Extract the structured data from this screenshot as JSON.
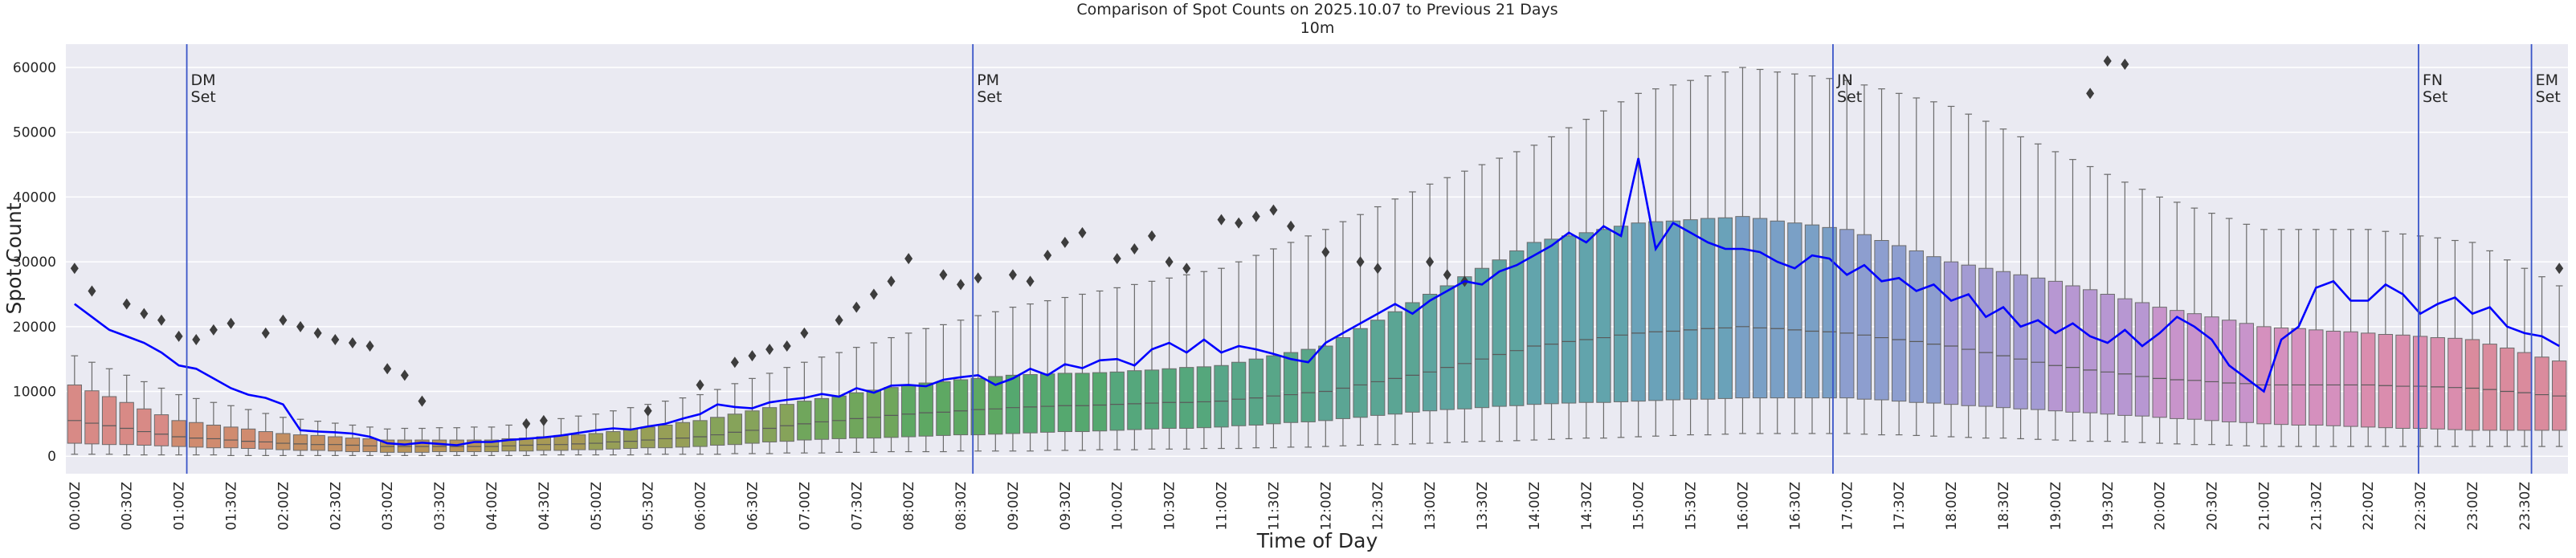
{
  "chart_data": {
    "type": "box",
    "title": "Comparison of Spot Counts on 2025.10.07 to Previous 21 Days",
    "subtitle": "10m",
    "xlabel": "Time of Day",
    "ylabel": "Spot Count",
    "ylim": [
      -2700,
      63600
    ],
    "yticks": [
      0,
      10000,
      20000,
      30000,
      40000,
      50000,
      60000
    ],
    "xlim": [
      -0.5,
      143.5
    ],
    "grid": true,
    "categories": [
      "00:00Z",
      null,
      null,
      "00:30Z",
      null,
      null,
      "01:00Z",
      null,
      null,
      "01:30Z",
      null,
      null,
      "02:00Z",
      null,
      null,
      "02:30Z",
      null,
      null,
      "03:00Z",
      null,
      null,
      "03:30Z",
      null,
      null,
      "04:00Z",
      null,
      null,
      "04:30Z",
      null,
      null,
      "05:00Z",
      null,
      null,
      "05:30Z",
      null,
      null,
      "06:00Z",
      null,
      null,
      "06:30Z",
      null,
      null,
      "07:00Z",
      null,
      null,
      "07:30Z",
      null,
      null,
      "08:00Z",
      null,
      null,
      "08:30Z",
      null,
      null,
      "09:00Z",
      null,
      null,
      "09:30Z",
      null,
      null,
      "10:00Z",
      null,
      null,
      "10:30Z",
      null,
      null,
      "11:00Z",
      null,
      null,
      "11:30Z",
      null,
      null,
      "12:00Z",
      null,
      null,
      "12:30Z",
      null,
      null,
      "13:00Z",
      null,
      null,
      "13:30Z",
      null,
      null,
      "14:00Z",
      null,
      null,
      "14:30Z",
      null,
      null,
      "15:00Z",
      null,
      null,
      "15:30Z",
      null,
      null,
      "16:00Z",
      null,
      null,
      "16:30Z",
      null,
      null,
      "17:00Z",
      null,
      null,
      "17:30Z",
      null,
      null,
      "18:00Z",
      null,
      null,
      "18:30Z",
      null,
      null,
      "19:00Z",
      null,
      null,
      "19:30Z",
      null,
      null,
      "20:00Z",
      null,
      null,
      "20:30Z",
      null,
      null,
      "21:00Z",
      null,
      null,
      "21:30Z",
      null,
      null,
      "22:00Z",
      null,
      null,
      "22:30Z",
      null,
      null,
      "23:00Z",
      null,
      null,
      "23:30Z",
      null,
      null
    ],
    "palette": [
      "#d88a86",
      "#d08b6f",
      "#c48f62",
      "#b8945a",
      "#a89a56",
      "#979f57",
      "#86a35a",
      "#70a65c",
      "#5ea863",
      "#55a86f",
      "#55a77c",
      "#58a688",
      "#5ba594",
      "#5ea5a0",
      "#62a4ac",
      "#6aa2b9",
      "#7aa0c6",
      "#8d9ecf",
      "#a39bd3",
      "#b797d2",
      "#c894cb",
      "#d590be",
      "#da8dae",
      "#da8b9d"
    ],
    "whislo": [
      300,
      300,
      300,
      200,
      200,
      200,
      200,
      200,
      200,
      100,
      100,
      100,
      100,
      100,
      100,
      100,
      100,
      100,
      100,
      100,
      100,
      100,
      100,
      100,
      100,
      100,
      100,
      200,
      200,
      200,
      200,
      200,
      200,
      300,
      300,
      300,
      300,
      300,
      400,
      400,
      400,
      500,
      500,
      500,
      600,
      600,
      600,
      700,
      700,
      700,
      700,
      800,
      800,
      800,
      800,
      800,
      900,
      900,
      900,
      1000,
      1000,
      1000,
      1100,
      1100,
      1100,
      1200,
      1200,
      1200,
      1300,
      1300,
      1400,
      1400,
      1500,
      1600,
      1700,
      1800,
      1800,
      1900,
      2000,
      2100,
      2200,
      2300,
      2300,
      2400,
      2500,
      2600,
      2700,
      2800,
      2800,
      2900,
      3000,
      3100,
      3200,
      3300,
      3300,
      3400,
      3500,
      3500,
      3500,
      3500,
      3500,
      3500,
      3500,
      3400,
      3300,
      3300,
      3200,
      3100,
      3000,
      2900,
      2800,
      2800,
      2700,
      2600,
      2500,
      2400,
      2300,
      2300,
      2200,
      2100,
      2000,
      1900,
      1800,
      1800,
      1700,
      1600,
      1500,
      1500,
      1500,
      1500,
      1500,
      1500,
      1500,
      1500,
      1500,
      1500,
      1500,
      1500,
      1500,
      1500,
      1500,
      1500,
      1500,
      1500
    ],
    "q1": [
      2000,
      1900,
      1800,
      1800,
      1700,
      1600,
      1500,
      1400,
      1300,
      1300,
      1200,
      1100,
      1000,
      900,
      900,
      800,
      700,
      700,
      600,
      600,
      600,
      700,
      700,
      700,
      700,
      800,
      800,
      900,
      900,
      1000,
      1000,
      1100,
      1200,
      1300,
      1300,
      1400,
      1500,
      1700,
      1800,
      2000,
      2200,
      2300,
      2500,
      2600,
      2700,
      2800,
      2800,
      2900,
      3000,
      3100,
      3200,
      3300,
      3300,
      3400,
      3500,
      3600,
      3700,
      3800,
      3800,
      3900,
      4000,
      4100,
      4200,
      4300,
      4300,
      4400,
      4500,
      4700,
      4800,
      5000,
      5200,
      5300,
      5500,
      5800,
      6000,
      6300,
      6500,
      6800,
      7000,
      7200,
      7300,
      7500,
      7700,
      7800,
      8000,
      8100,
      8200,
      8300,
      8300,
      8400,
      8500,
      8600,
      8700,
      8800,
      8800,
      8900,
      9000,
      9000,
      9000,
      9000,
      9000,
      9000,
      9000,
      8800,
      8700,
      8500,
      8300,
      8200,
      8000,
      7800,
      7700,
      7500,
      7300,
      7200,
      7000,
      6800,
      6700,
      6500,
      6300,
      6200,
      6000,
      5800,
      5700,
      5500,
      5300,
      5200,
      5000,
      4900,
      4800,
      4800,
      4700,
      4600,
      4500,
      4400,
      4300,
      4300,
      4200,
      4100,
      4000,
      4000,
      4000,
      4000,
      4000,
      4000
    ],
    "med": [
      5500,
      5100,
      4700,
      4300,
      3800,
      3400,
      3000,
      2800,
      2700,
      2500,
      2300,
      2200,
      2000,
      1900,
      1800,
      1800,
      1700,
      1600,
      1500,
      1500,
      1500,
      1500,
      1500,
      1500,
      1500,
      1600,
      1700,
      1800,
      1800,
      1900,
      2000,
      2200,
      2300,
      2500,
      2700,
      2800,
      3000,
      3300,
      3700,
      4000,
      4300,
      4700,
      5000,
      5300,
      5500,
      5800,
      6000,
      6300,
      6500,
      6700,
      6800,
      7000,
      7200,
      7300,
      7500,
      7600,
      7700,
      7800,
      7800,
      7900,
      8000,
      8100,
      8200,
      8300,
      8300,
      8400,
      8500,
      8800,
      9000,
      9300,
      9500,
      9800,
      10000,
      10500,
      11000,
      11500,
      12000,
      12500,
      13000,
      13700,
      14300,
      15000,
      15700,
      16300,
      17000,
      17300,
      17700,
      18000,
      18300,
      18700,
      19000,
      19200,
      19300,
      19500,
      19700,
      19800,
      20000,
      19800,
      19700,
      19500,
      19300,
      19200,
      19000,
      18700,
      18300,
      18000,
      17700,
      17300,
      17000,
      16500,
      16000,
      15500,
      15000,
      14500,
      14000,
      13700,
      13300,
      13000,
      12700,
      12300,
      12000,
      11800,
      11700,
      11500,
      11300,
      11200,
      11000,
      11000,
      11000,
      11000,
      11000,
      11000,
      11000,
      10900,
      10800,
      10800,
      10700,
      10600,
      10500,
      10300,
      10000,
      9800,
      9500,
      9300
    ],
    "q3": [
      11000,
      10100,
      9200,
      8300,
      7300,
      6400,
      5500,
      5200,
      4800,
      4500,
      4200,
      3800,
      3500,
      3300,
      3200,
      3000,
      2800,
      2700,
      2500,
      2500,
      2500,
      2500,
      2500,
      2500,
      2500,
      2700,
      2800,
      3000,
      3200,
      3300,
      3500,
      3800,
      4200,
      4500,
      4800,
      5200,
      5500,
      6000,
      6500,
      7000,
      7500,
      8000,
      8500,
      8900,
      9300,
      9800,
      10200,
      10600,
      11000,
      11300,
      11500,
      11800,
      12000,
      12300,
      12500,
      12600,
      12700,
      12800,
      12800,
      12900,
      13000,
      13200,
      13300,
      13500,
      13700,
      13800,
      14000,
      14500,
      15000,
      15500,
      16000,
      16500,
      17000,
      18300,
      19700,
      21000,
      22300,
      23700,
      25000,
      26300,
      27700,
      29000,
      30300,
      31700,
      33000,
      33500,
      34000,
      34500,
      35000,
      35500,
      36000,
      36200,
      36300,
      36500,
      36700,
      36800,
      37000,
      36700,
      36300,
      36000,
      35700,
      35300,
      35000,
      34200,
      33300,
      32500,
      31700,
      30800,
      30000,
      29500,
      29000,
      28500,
      28000,
      27500,
      27000,
      26300,
      25700,
      25000,
      24300,
      23700,
      23000,
      22500,
      22000,
      21500,
      21000,
      20500,
      20000,
      19800,
      19700,
      19500,
      19300,
      19200,
      19000,
      18800,
      18700,
      18500,
      18300,
      18200,
      18000,
      17300,
      16700,
      16000,
      15300,
      14700
    ],
    "whishi": [
      15500,
      14500,
      13500,
      12500,
      11500,
      10500,
      9500,
      8900,
      8300,
      7800,
      7200,
      6600,
      6000,
      5700,
      5400,
      5100,
      4800,
      4500,
      4200,
      4300,
      4300,
      4400,
      4400,
      4500,
      4500,
      4800,
      5200,
      5500,
      5800,
      6200,
      6500,
      7000,
      7500,
      8000,
      8500,
      9000,
      9500,
      10300,
      11200,
      12000,
      12800,
      13700,
      14500,
      15300,
      16000,
      16800,
      17500,
      18300,
      19000,
      19700,
      20300,
      21000,
      21700,
      22300,
      23000,
      23500,
      24000,
      24500,
      25000,
      25500,
      26000,
      26500,
      27000,
      27500,
      28000,
      28500,
      29000,
      30000,
      31000,
      32000,
      33000,
      34000,
      35000,
      36200,
      37300,
      38500,
      39700,
      40800,
      42000,
      43000,
      44000,
      45000,
      46000,
      47000,
      48000,
      49300,
      50700,
      52000,
      53300,
      54700,
      56000,
      56700,
      57300,
      58000,
      58700,
      59300,
      60000,
      59700,
      59300,
      59000,
      58700,
      58300,
      58000,
      57300,
      56700,
      56000,
      55300,
      54700,
      54000,
      52800,
      51700,
      50500,
      49300,
      48200,
      47000,
      45800,
      44700,
      43500,
      42300,
      41200,
      40000,
      39200,
      38300,
      37500,
      36700,
      35800,
      35000,
      35000,
      35000,
      35000,
      35000,
      35000,
      35000,
      34700,
      34300,
      34000,
      33700,
      33300,
      33000,
      31700,
      30300,
      29000,
      27700,
      26300
    ],
    "fliers": {
      "color": "#3d3d3d",
      "x": [
        0,
        1,
        3,
        4,
        5,
        6,
        7,
        8,
        9,
        11,
        12,
        13,
        14,
        15,
        16,
        17,
        18,
        19,
        20,
        26,
        27,
        33,
        36,
        38,
        39,
        40,
        41,
        42,
        44,
        45,
        46,
        47,
        48,
        50,
        51,
        52,
        54,
        55,
        56,
        57,
        58,
        60,
        61,
        62,
        63,
        64,
        66,
        67,
        68,
        69,
        70,
        72,
        74,
        75,
        78,
        79,
        80,
        116,
        117,
        118,
        143
      ],
      "values": [
        29000,
        25500,
        23500,
        22000,
        21000,
        18500,
        18000,
        19500,
        20500,
        19000,
        21000,
        20000,
        19000,
        18000,
        17500,
        17000,
        13500,
        12500,
        8500,
        5000,
        5500,
        7000,
        11000,
        14500,
        15500,
        16500,
        17000,
        19000,
        21000,
        23000,
        25000,
        27000,
        30500,
        28000,
        26500,
        27500,
        28000,
        27000,
        31000,
        33000,
        34500,
        30500,
        32000,
        34000,
        30000,
        29000,
        36500,
        36000,
        37000,
        38000,
        35500,
        31500,
        30000,
        29000,
        30000,
        28000,
        27000,
        56000,
        61000,
        60500,
        29000
      ]
    },
    "line": {
      "color": "#0000ff",
      "values": [
        23500,
        21500,
        19500,
        18500,
        17500,
        16000,
        14000,
        13500,
        12000,
        10500,
        9500,
        9000,
        8000,
        4000,
        3800,
        3700,
        3500,
        3000,
        2000,
        1800,
        2100,
        1900,
        1700,
        2200,
        2200,
        2500,
        2700,
        2900,
        3200,
        3600,
        4000,
        4300,
        4100,
        4600,
        5000,
        5800,
        6500,
        8000,
        7600,
        7400,
        8300,
        8700,
        9000,
        9600,
        9200,
        10500,
        9800,
        10900,
        11000,
        10800,
        11800,
        12200,
        12500,
        11000,
        12000,
        13500,
        12500,
        14200,
        13600,
        14800,
        15000,
        14000,
        16500,
        17500,
        16000,
        18000,
        16000,
        17000,
        16500,
        15800,
        15000,
        14500,
        17500,
        19000,
        20500,
        22000,
        23500,
        22000,
        24000,
        25500,
        27000,
        26500,
        28500,
        29500,
        31000,
        32500,
        34500,
        33000,
        35500,
        34000,
        46000,
        32000,
        36000,
        34500,
        33000,
        32000,
        32000,
        31500,
        30000,
        29000,
        31000,
        30500,
        28000,
        29500,
        27000,
        27500,
        25500,
        26500,
        24000,
        25000,
        21500,
        23000,
        20000,
        21000,
        19000,
        20500,
        18500,
        17500,
        19500,
        17000,
        19000,
        21500,
        20000,
        18000,
        14000,
        12000,
        10000,
        18000,
        20000,
        26000,
        27000,
        24000,
        24000,
        26500,
        25000,
        22000,
        23500,
        24500,
        22000,
        23000,
        20000,
        19000,
        18500,
        17000
      ]
    },
    "vline_color": "#3a55c8",
    "vlines": [
      {
        "x": 6.46,
        "lines": [
          "DM",
          "Set"
        ]
      },
      {
        "x": 51.7,
        "lines": [
          "PM",
          "Set"
        ]
      },
      {
        "x": 101.2,
        "lines": [
          "JN",
          "Set"
        ]
      },
      {
        "x": 134.9,
        "lines": [
          "FN",
          "Set"
        ]
      },
      {
        "x": 141.4,
        "lines": [
          "EM",
          "Set"
        ]
      }
    ]
  }
}
